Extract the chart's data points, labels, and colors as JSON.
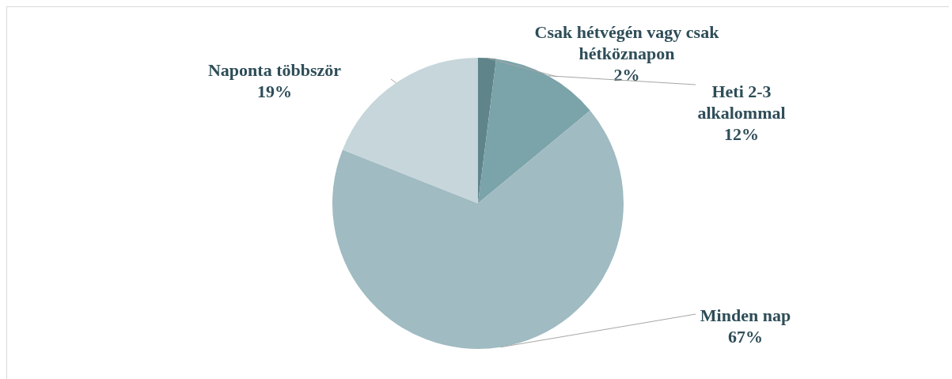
{
  "chart_data": {
    "type": "pie",
    "categories": [
      "Csak hétvégén vagy csak hétköznapon",
      "Heti 2-3 alkalommal",
      "Minden nap",
      "Naponta többször"
    ],
    "values": [
      2,
      12,
      67,
      19
    ],
    "colors": [
      "#5f8489",
      "#7ba3aa",
      "#a0bbc2",
      "#c6d6db"
    ],
    "value_labels": [
      "2%",
      "12%",
      "67%",
      "19%"
    ],
    "legend": false
  }
}
